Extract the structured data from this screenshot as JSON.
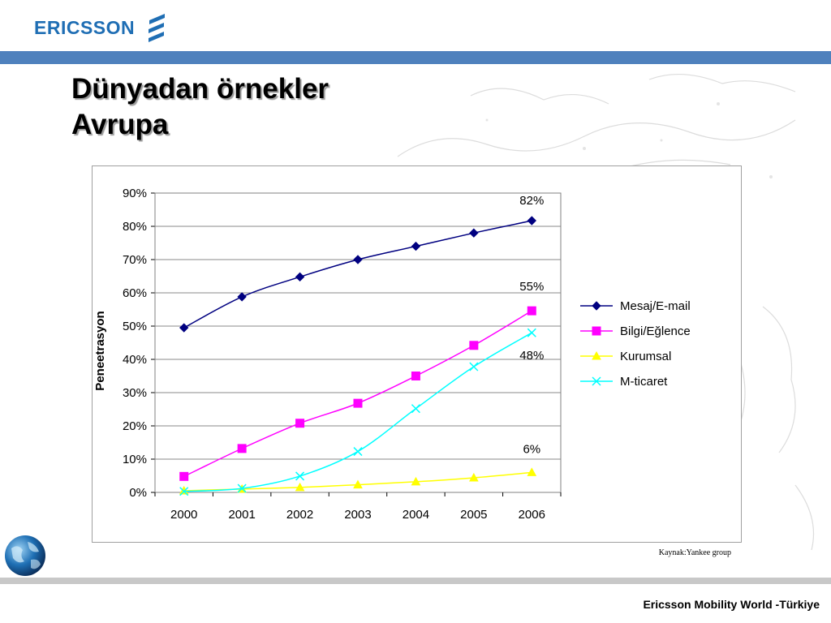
{
  "logo": {
    "text": "ERICSSON",
    "icon": "ericsson-stripes-icon",
    "color": "#1f6eb4"
  },
  "slide": {
    "title_line1": "Dünyadan örnekler",
    "title_line2": "Avrupa",
    "source": "Kaynak:Yankee group",
    "footer": "Ericsson Mobility World -Türkiye",
    "band_color": "#4f81bd"
  },
  "chart_data": {
    "type": "line",
    "title": "",
    "xlabel": "",
    "ylabel": "Peneetrasyon",
    "categories": [
      "2000",
      "2001",
      "2002",
      "2003",
      "2004",
      "2005",
      "2006"
    ],
    "y_ticks": [
      "0%",
      "10%",
      "20%",
      "30%",
      "40%",
      "50%",
      "60%",
      "70%",
      "80%",
      "90%"
    ],
    "ylim": [
      0,
      90
    ],
    "grid": true,
    "legend_position": "right",
    "series": [
      {
        "name": "Mesaj/E-mail",
        "color": "#000080",
        "marker": "diamond",
        "values": [
          49.5,
          58.8,
          64.8,
          70,
          74,
          78,
          81.7
        ]
      },
      {
        "name": "Bilgi/Eğlence",
        "color": "#ff00ff",
        "marker": "square",
        "values": [
          4.8,
          13.2,
          20.8,
          26.8,
          35,
          44.2,
          54.6
        ]
      },
      {
        "name": "Kurumsal",
        "color": "#ffff00",
        "marker": "triangle",
        "values": [
          0.5,
          1,
          1.5,
          2.3,
          3.2,
          4.4,
          6
        ]
      },
      {
        "name": "M-ticaret",
        "color": "#00ffff",
        "marker": "x",
        "values": [
          0.3,
          1.2,
          4.9,
          12.3,
          25.2,
          37.8,
          48
        ]
      }
    ],
    "annotations": [
      {
        "text": "82%",
        "x": "2006",
        "y": 81.7
      },
      {
        "text": "55%",
        "x": "2006",
        "y": 54.6
      },
      {
        "text": "48%",
        "x": "2006",
        "y": 48
      },
      {
        "text": "6%",
        "x": "2006",
        "y": 6
      }
    ]
  }
}
